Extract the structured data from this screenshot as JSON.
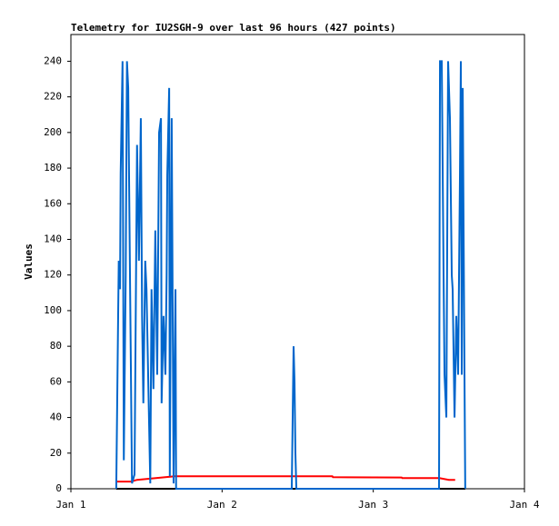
{
  "chart_data": {
    "type": "line",
    "title": "Telemetry for IU2SGH-9 over last 96 hours (427 points)",
    "ylabel": "Values",
    "xlim": [
      0,
      72
    ],
    "xticks": [
      {
        "value": 0,
        "label": "Jan 1"
      },
      {
        "value": 24,
        "label": "Jan 2"
      },
      {
        "value": 48,
        "label": "Jan 3"
      },
      {
        "value": 72,
        "label": "Jan 4"
      }
    ],
    "ylim": [
      0,
      255
    ],
    "yticks": [
      0,
      20,
      40,
      60,
      80,
      100,
      120,
      140,
      160,
      180,
      200,
      220,
      240
    ],
    "grid": false,
    "series": [
      {
        "color": "#000000",
        "x": [
          7.2,
          62.6
        ],
        "values": [
          0,
          0
        ]
      },
      {
        "color": "#ff0000",
        "x": [
          7.2,
          9.5,
          10.5,
          13.5,
          16.5,
          41.5,
          41.6,
          52.5,
          52.6,
          58.5,
          60,
          61
        ],
        "values": [
          4,
          4,
          5,
          6,
          7,
          7,
          6.5,
          6.3,
          6,
          6,
          5,
          5
        ]
      },
      {
        "color": "#0066cc",
        "x": [
          7.2,
          7.5,
          7.6,
          7.8,
          7.9,
          8.2,
          8.4,
          8.7,
          8.9,
          9.1,
          9.4,
          9.7,
          10.1,
          10.5,
          10.8,
          11.1,
          11.3,
          11.5,
          11.8,
          12.0,
          12.3,
          12.6,
          12.8,
          13.1,
          13.4,
          13.7,
          14.0,
          14.3,
          14.4,
          14.7,
          15.0,
          15.2,
          15.3,
          15.6,
          15.7,
          16.0,
          16.3,
          16.6,
          16.7,
          35.06,
          35.35,
          35.5,
          35.64,
          35.79,
          58.44,
          58.59,
          58.87,
          59.16,
          59.31,
          59.6,
          59.88,
          60.17,
          60.46,
          60.6,
          60.9,
          61.18,
          61.47,
          61.76,
          61.9,
          62.05,
          62.2,
          62.48,
          62.6
        ],
        "values": [
          0,
          97,
          128,
          112,
          177,
          240,
          16,
          120,
          240,
          225,
          112,
          3,
          8,
          193,
          128,
          208,
          97,
          48,
          128,
          112,
          57,
          3,
          112,
          56,
          145,
          64,
          200,
          208,
          48,
          97,
          64,
          120,
          176,
          225,
          7,
          208,
          3,
          112,
          0,
          0,
          80,
          60,
          20,
          0,
          0,
          240,
          240,
          120,
          64,
          40,
          240,
          208,
          120,
          112,
          40,
          97,
          64,
          176,
          240,
          64,
          225,
          64,
          0
        ]
      }
    ]
  }
}
